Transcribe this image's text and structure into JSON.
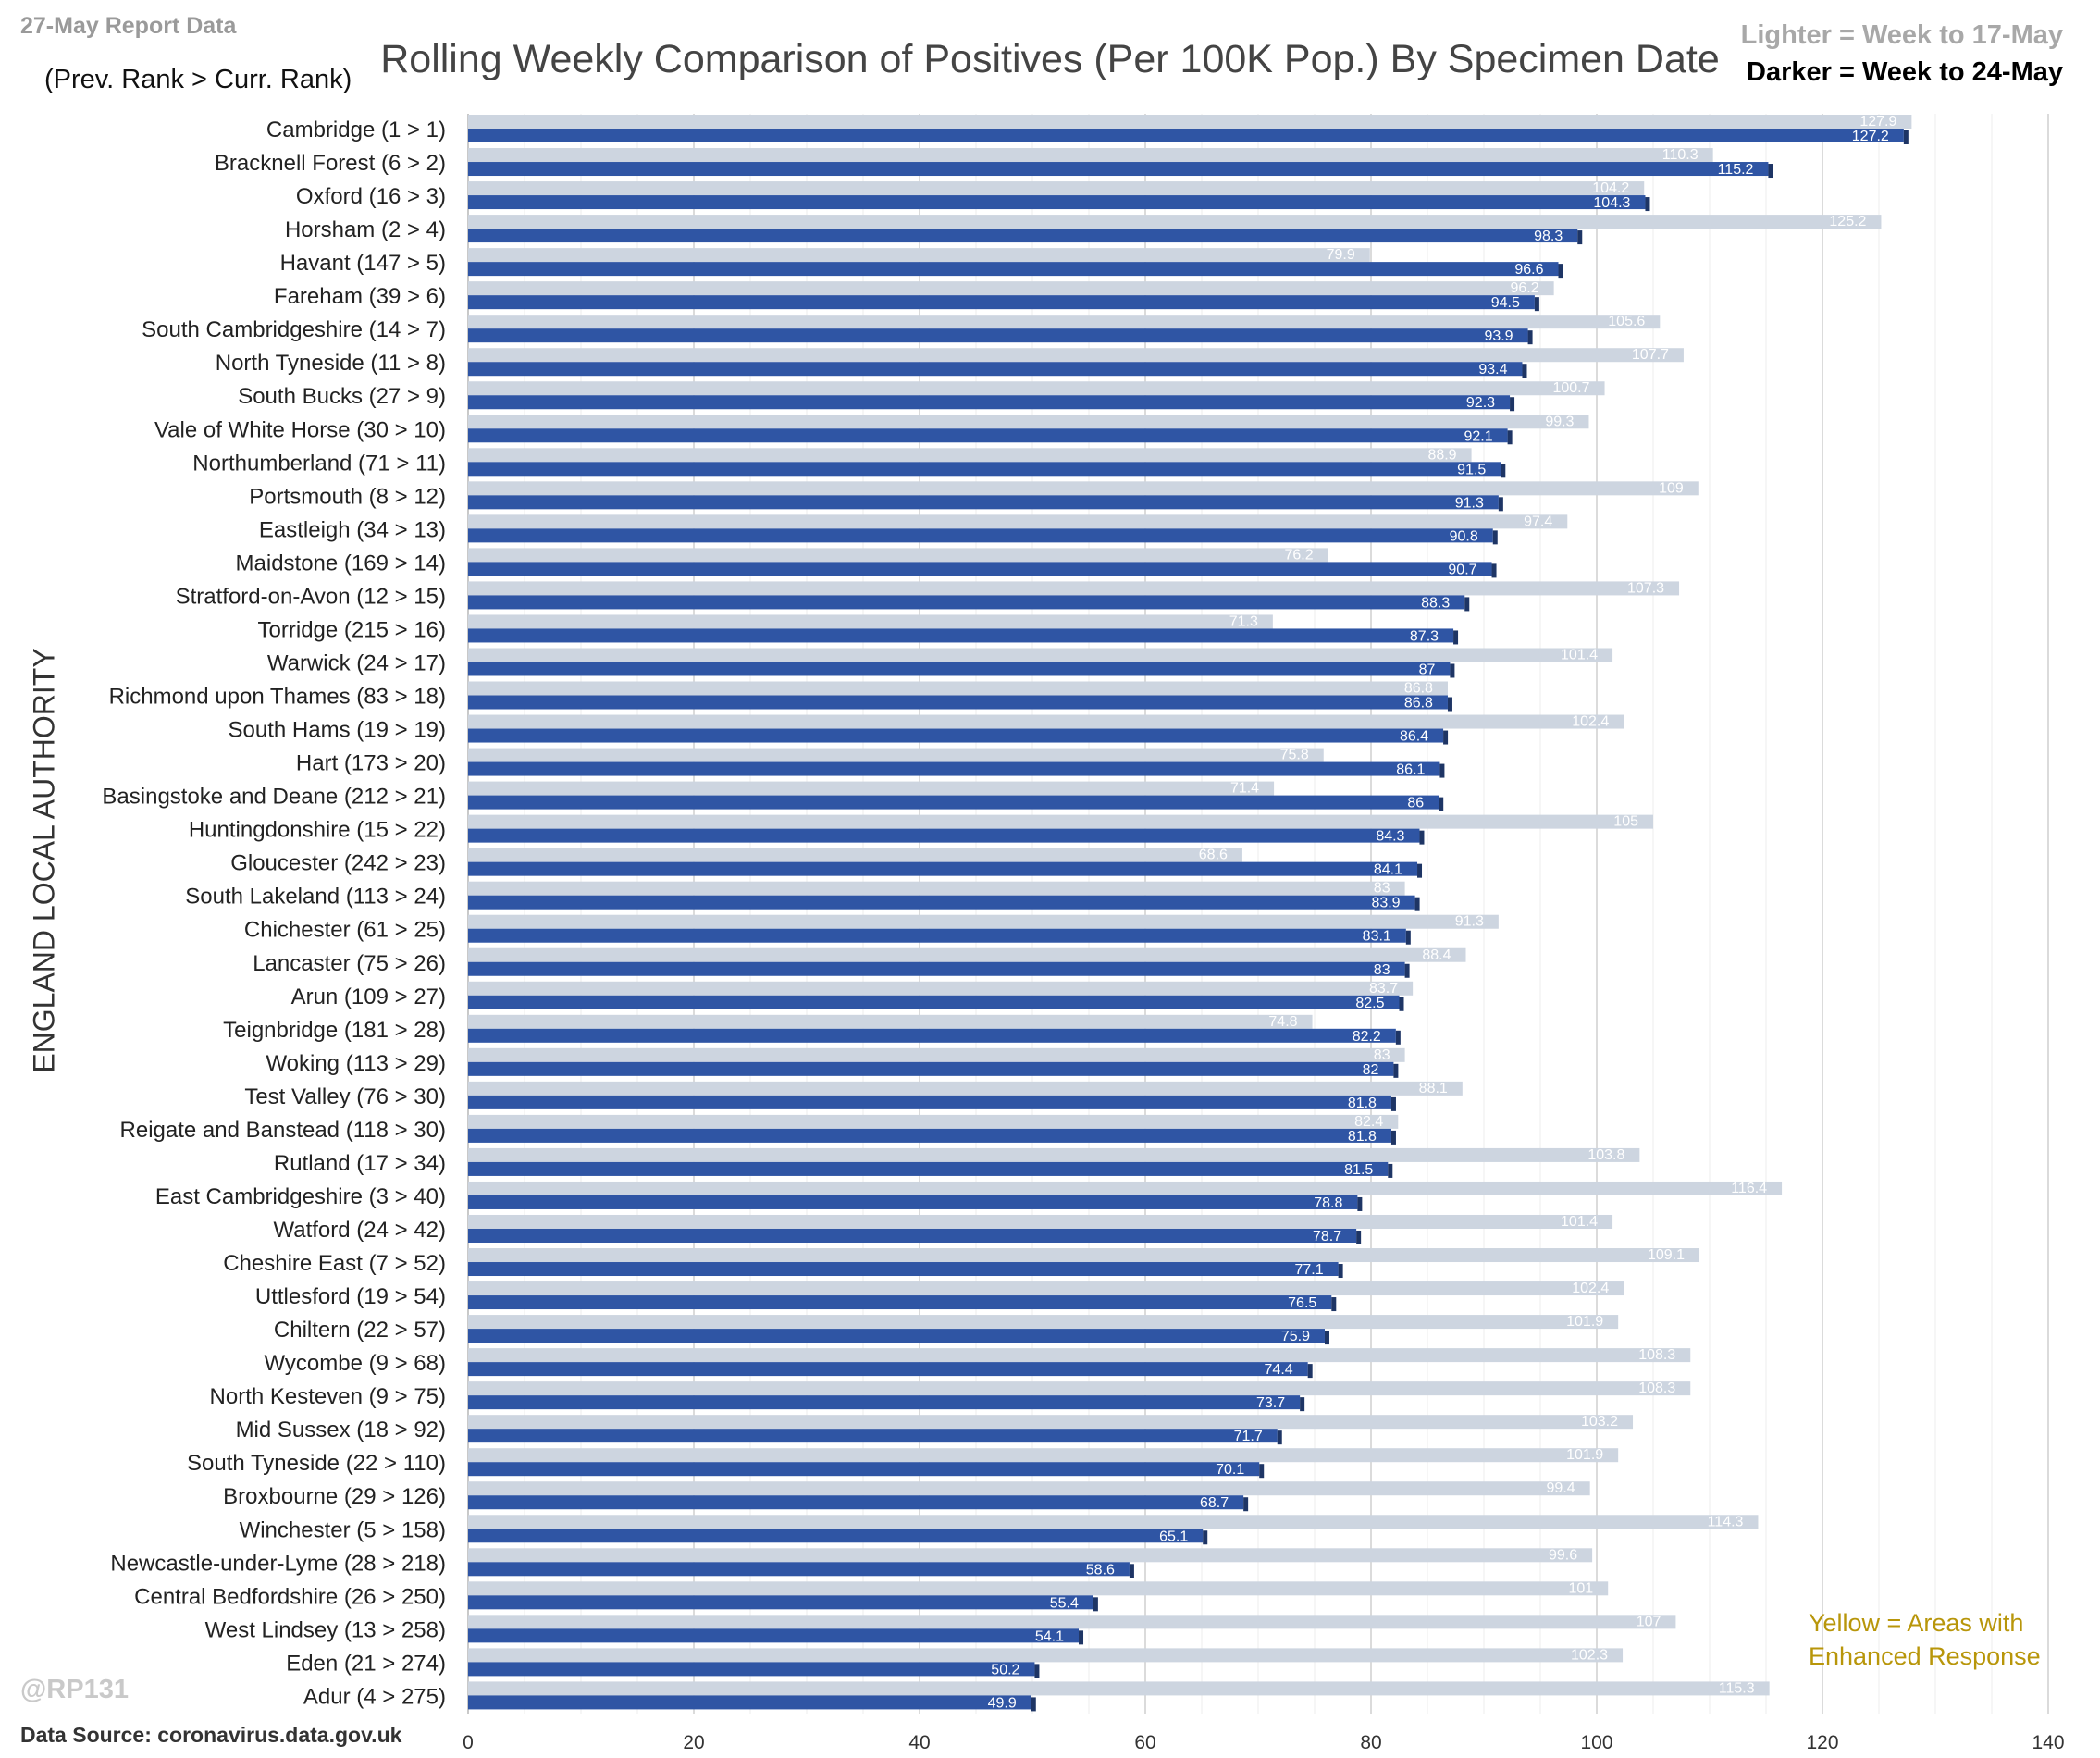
{
  "header": {
    "report_date": "27-May Report Data",
    "rank_note": "(Prev. Rank > Curr. Rank)",
    "legend_light": "Lighter =  Week to 17-May",
    "legend_dark": "Darker =  Week to 24-May"
  },
  "footer": {
    "handle": "@RP131",
    "source": "Data Source: coronavirus.data.gov.uk",
    "yellow_note": "Yellow = Areas with Enhanced Response"
  },
  "colors": {
    "current": "#2f55a4",
    "previous": "#cdd5e0",
    "grid": "#d9d9d9"
  },
  "chart_data": {
    "type": "bar",
    "orientation": "horizontal",
    "title": "Rolling Weekly Comparison of Positives  (Per 100K Pop.) By Specimen Date",
    "xlabel": "",
    "ylabel": "ENGLAND LOCAL AUTHORITY",
    "xlim": [
      0,
      140
    ],
    "xticks": [
      0,
      20,
      40,
      60,
      80,
      100,
      120,
      140
    ],
    "grid": true,
    "categories": [
      "Cambridge (1 > 1)",
      "Bracknell Forest (6 > 2)",
      "Oxford (16 > 3)",
      "Horsham (2 > 4)",
      "Havant (147 > 5)",
      "Fareham (39 > 6)",
      "South Cambridgeshire (14 > 7)",
      "North Tyneside (11 > 8)",
      "South Bucks (27 > 9)",
      "Vale of White Horse (30 > 10)",
      "Northumberland (71 > 11)",
      "Portsmouth (8 > 12)",
      "Eastleigh (34 > 13)",
      "Maidstone (169 > 14)",
      "Stratford-on-Avon (12 > 15)",
      "Torridge (215 > 16)",
      "Warwick (24 > 17)",
      "Richmond upon Thames (83 > 18)",
      "South Hams (19 > 19)",
      "Hart (173 > 20)",
      "Basingstoke and Deane (212 > 21)",
      "Huntingdonshire (15 > 22)",
      "Gloucester (242 > 23)",
      "South Lakeland (113 > 24)",
      "Chichester (61 > 25)",
      "Lancaster (75 > 26)",
      "Arun (109 > 27)",
      "Teignbridge (181 > 28)",
      "Woking (113 > 29)",
      "Test Valley (76 > 30)",
      "Reigate and Banstead (118 > 30)",
      "Rutland (17 > 34)",
      "East Cambridgeshire (3 > 40)",
      "Watford (24 > 42)",
      "Cheshire East (7 > 52)",
      "Uttlesford (19 > 54)",
      "Chiltern (22 > 57)",
      "Wycombe (9 > 68)",
      "North Kesteven (9 > 75)",
      "Mid Sussex (18 > 92)",
      "South Tyneside (22 > 110)",
      "Broxbourne (29 > 126)",
      "Winchester (5 > 158)",
      "Newcastle-under-Lyme (28 > 218)",
      "Central Bedfordshire (26 > 250)",
      "West Lindsey (13 > 258)",
      "Eden (21 > 274)",
      "Adur (4 > 275)"
    ],
    "series": [
      {
        "name": "Week to 17-May",
        "values": [
          127.9,
          110.3,
          104.2,
          125.2,
          79.9,
          96.2,
          105.6,
          107.7,
          100.7,
          99.3,
          88.9,
          109,
          97.4,
          76.2,
          107.3,
          71.3,
          101.4,
          86.8,
          102.4,
          75.8,
          71.4,
          105,
          68.6,
          83,
          91.3,
          88.4,
          83.7,
          74.8,
          83,
          88.1,
          82.4,
          103.8,
          116.4,
          101.4,
          109.1,
          102.4,
          101.9,
          108.3,
          108.3,
          103.2,
          101.9,
          99.4,
          114.3,
          99.6,
          101,
          107,
          102.3,
          115.3
        ]
      },
      {
        "name": "Week to 24-May",
        "values": [
          127.2,
          115.2,
          104.3,
          98.3,
          96.6,
          94.5,
          93.9,
          93.4,
          92.3,
          92.1,
          91.5,
          91.3,
          90.8,
          90.7,
          88.3,
          87.3,
          87,
          86.8,
          86.4,
          86.1,
          86,
          84.3,
          84.1,
          83.9,
          83.1,
          83,
          82.5,
          82.2,
          82,
          81.8,
          81.8,
          81.5,
          78.8,
          78.7,
          77.1,
          76.5,
          75.9,
          74.4,
          73.7,
          71.7,
          70.1,
          68.7,
          65.1,
          58.6,
          55.4,
          54.1,
          50.2,
          49.9
        ]
      }
    ]
  }
}
